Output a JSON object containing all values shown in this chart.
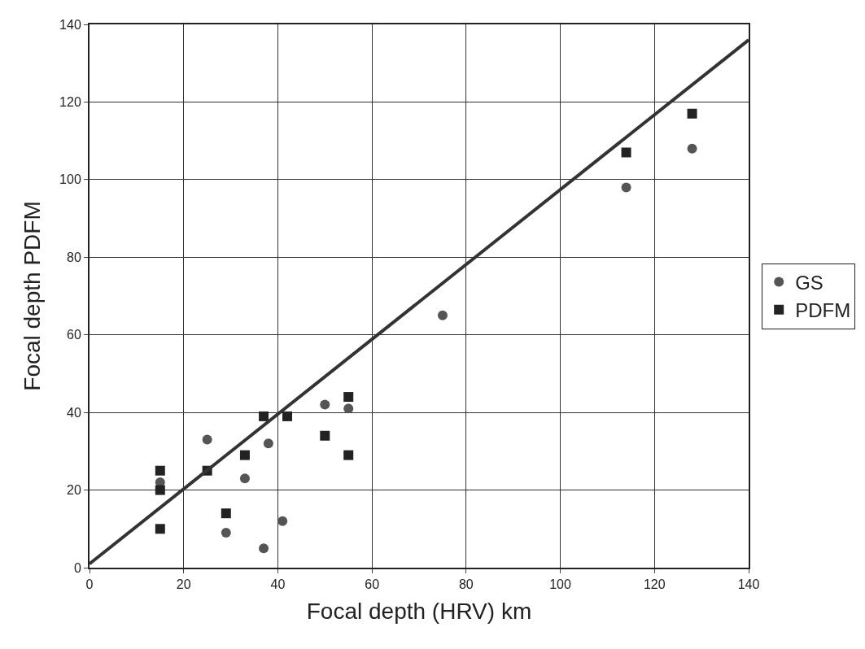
{
  "chart_data": {
    "type": "scatter",
    "xlabel": "Focal depth (HRV) km",
    "ylabel": "Focal depth PDFM",
    "xlim": [
      0,
      140
    ],
    "ylim": [
      0,
      140
    ],
    "xticks": [
      0,
      20,
      40,
      60,
      80,
      100,
      120,
      140
    ],
    "yticks": [
      0,
      20,
      40,
      60,
      80,
      100,
      120,
      140
    ],
    "grid": true,
    "legend": "right",
    "series": [
      {
        "name": "GS",
        "color": "#555555",
        "marker": "circle",
        "x": [
          15,
          25,
          29,
          33,
          37,
          38,
          41,
          50,
          55,
          75,
          114,
          128
        ],
        "values": [
          22,
          33,
          9,
          23,
          5,
          32,
          12,
          42,
          41,
          65,
          98,
          108
        ]
      },
      {
        "name": "PDFM",
        "color": "#222222",
        "marker": "square",
        "x": [
          15,
          15,
          15,
          25,
          29,
          33,
          37,
          42,
          50,
          55,
          55,
          114,
          128
        ],
        "values": [
          25,
          20,
          10,
          25,
          14,
          29,
          39,
          39,
          34,
          44,
          29,
          107,
          117
        ]
      },
      {
        "type": "line",
        "color": "#333333",
        "x": [
          0,
          140
        ],
        "values": [
          1,
          136
        ]
      }
    ]
  }
}
